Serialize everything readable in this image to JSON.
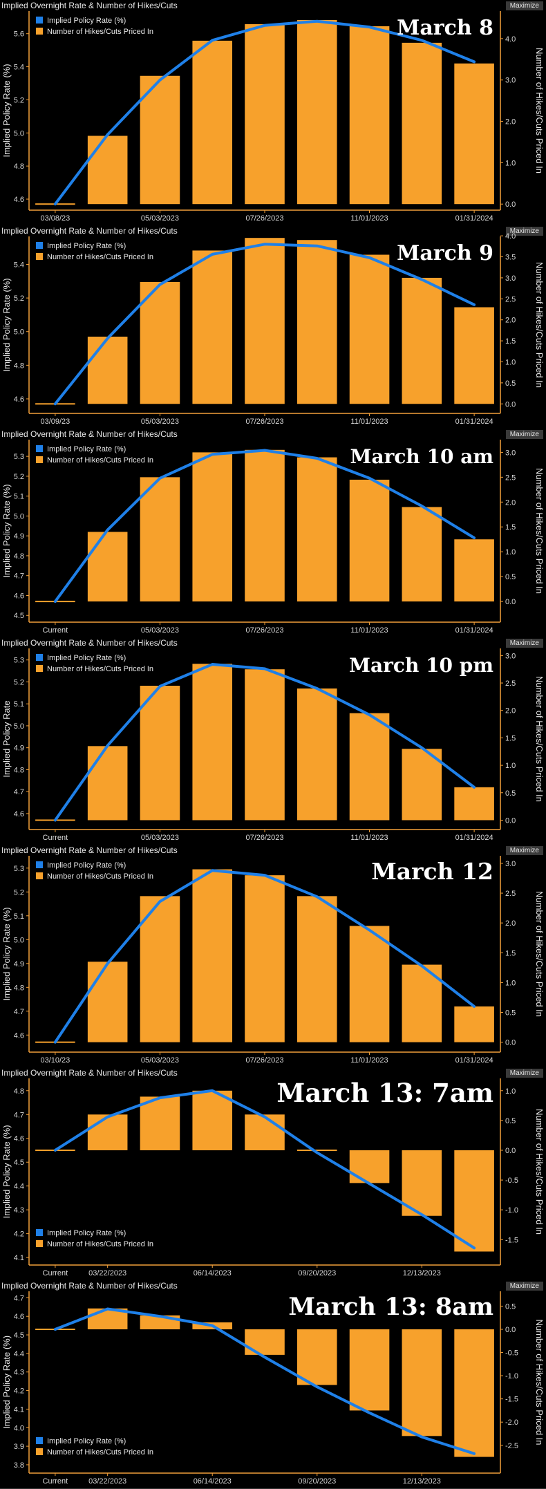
{
  "colors": {
    "bar": "#f7a12c",
    "line": "#1f80e8",
    "axis": "#f2a03a",
    "text": "#e6e6e6",
    "background": "#000000"
  },
  "chart_data": [
    {
      "type": "bar",
      "panel_title": "Implied Overnight Rate & Number of Hikes/Cuts",
      "button": "Maximize",
      "annotation": "March 8",
      "ylabel": "Implied Policy Rate (%)",
      "y2label": "Number of Hikes/Cuts Priced In",
      "legend": [
        "Implied Policy Rate (%)",
        "Number of Hikes/Cuts Priced In"
      ],
      "legend_position": "top-left",
      "yticks": [
        4.6,
        4.8,
        5.0,
        5.2,
        5.4,
        5.6
      ],
      "ytick_labels": [
        "4.6",
        "4.8",
        "5.0",
        "5.2",
        "5.4",
        "5.6"
      ],
      "y2ticks": [
        0.0,
        1.0,
        2.0,
        3.0,
        4.0
      ],
      "y2tick_labels": [
        "0.0",
        "1.0",
        "2.0",
        "3.0",
        "4.0"
      ],
      "ylim": [
        4.55,
        5.72
      ],
      "xtick_labels": [
        "03/08/23",
        "05/03/2023",
        "07/26/2023",
        "11/01/2023",
        "01/31/2024"
      ],
      "xtick_index": [
        0,
        2,
        4,
        6,
        8
      ],
      "hikes": [
        0.0,
        1.65,
        3.1,
        3.95,
        4.35,
        4.45,
        4.3,
        3.9,
        3.4
      ],
      "rate": [
        4.57,
        4.99,
        5.32,
        5.56,
        5.65,
        5.675,
        5.64,
        5.56,
        5.43
      ]
    },
    {
      "type": "bar",
      "panel_title": "Implied Overnight Rate & Number of Hikes/Cuts",
      "button": "Maximize",
      "annotation": "March 9",
      "ylabel": "Implied Policy Rate (%)",
      "y2label": "Number of Hikes/Cuts Priced In",
      "legend": [
        "Implied Policy Rate (%)",
        "Number of Hikes/Cuts Priced In"
      ],
      "legend_position": "top-left",
      "yticks": [
        4.6,
        4.8,
        5.0,
        5.2,
        5.4
      ],
      "ytick_labels": [
        "4.6",
        "4.8",
        "5.0",
        "5.2",
        "5.4"
      ],
      "y2ticks": [
        0.0,
        0.5,
        1.0,
        1.5,
        2.0,
        2.5,
        3.0,
        3.5,
        4.0
      ],
      "y2tick_labels": [
        "0.0",
        "0.5",
        "1.0",
        "1.5",
        "2.0",
        "2.5",
        "3.0",
        "3.5",
        "4.0"
      ],
      "ylim": [
        4.53,
        5.55
      ],
      "xtick_labels": [
        "03/09/23",
        "05/03/2023",
        "07/26/2023",
        "11/01/2023",
        "01/31/2024"
      ],
      "xtick_index": [
        0,
        2,
        4,
        6,
        8
      ],
      "hikes": [
        0.0,
        1.6,
        2.9,
        3.65,
        3.95,
        3.9,
        3.55,
        3.0,
        2.3
      ],
      "rate": [
        4.57,
        4.96,
        5.28,
        5.46,
        5.52,
        5.51,
        5.44,
        5.31,
        5.16
      ]
    },
    {
      "type": "bar",
      "panel_title": "Implied Overnight Rate & Number of Hikes/Cuts",
      "button": "Maximize",
      "annotation": "March 10 am",
      "ylabel": "Implied Policy Rate (%)",
      "y2label": "Number of Hikes/Cuts Priced In",
      "legend": [
        "Implied Policy Rate (%)",
        "Number of Hikes/Cuts Priced In"
      ],
      "legend_position": "top-left",
      "yticks": [
        4.5,
        4.6,
        4.7,
        4.8,
        4.9,
        5.0,
        5.1,
        5.2,
        5.3
      ],
      "ytick_labels": [
        "4.5",
        "4.6",
        "4.7",
        "4.8",
        "4.9",
        "5.0",
        "5.1",
        "5.2",
        "5.3"
      ],
      "y2ticks": [
        0.0,
        0.5,
        1.0,
        1.5,
        2.0,
        2.5,
        3.0
      ],
      "y2tick_labels": [
        "0.0",
        "0.5",
        "1.0",
        "1.5",
        "2.0",
        "2.5",
        "3.0"
      ],
      "ylim": [
        4.48,
        5.37
      ],
      "xtick_labels": [
        "Current",
        "05/03/2023",
        "07/26/2023",
        "11/01/2023",
        "01/31/2024"
      ],
      "xtick_index": [
        0,
        2,
        4,
        6,
        8
      ],
      "hikes": [
        0.0,
        1.4,
        2.5,
        3.0,
        3.05,
        2.9,
        2.45,
        1.9,
        1.25
      ],
      "rate": [
        4.57,
        4.93,
        5.19,
        5.31,
        5.33,
        5.29,
        5.19,
        5.05,
        4.89
      ]
    },
    {
      "type": "bar",
      "panel_title": "Implied Overnight Rate & Number of Hikes/Cuts",
      "button": "Maximize",
      "annotation": "March 10 pm",
      "ylabel": "Implied Policy Rate",
      "y2label": "Number of Hikes/Cuts Priced In",
      "legend": [
        "Implied Policy Rate (%)",
        "Number of Hikes/Cuts Priced In"
      ],
      "legend_position": "top-left",
      "yticks": [
        4.6,
        4.7,
        4.8,
        4.9,
        5.0,
        5.1,
        5.2,
        5.3
      ],
      "ytick_labels": [
        "4.6",
        "4.7",
        "4.8",
        "4.9",
        "5.0",
        "5.1",
        "5.2",
        "5.3"
      ],
      "y2ticks": [
        0.0,
        0.5,
        1.0,
        1.5,
        2.0,
        2.5,
        3.0
      ],
      "y2tick_labels": [
        "0.0",
        "0.5",
        "1.0",
        "1.5",
        "2.0",
        "2.5",
        "3.0"
      ],
      "ylim": [
        4.54,
        5.34
      ],
      "xtick_labels": [
        "Current",
        "05/03/2023",
        "07/26/2023",
        "11/01/2023",
        "01/31/2024"
      ],
      "xtick_index": [
        0,
        2,
        4,
        6,
        8
      ],
      "hikes": [
        0.0,
        1.35,
        2.45,
        2.85,
        2.75,
        2.4,
        1.95,
        1.3,
        0.6
      ],
      "rate": [
        4.57,
        4.91,
        5.18,
        5.28,
        5.26,
        5.17,
        5.05,
        4.9,
        4.72
      ]
    },
    {
      "type": "bar",
      "panel_title": "Implied Overnight Rate & Number of Hikes/Cuts",
      "button": "Maximize",
      "annotation": "March 12",
      "ylabel": "Implied Policy Rate (%)",
      "y2label": "Number of Hikes/Cuts Priced In",
      "legend": [
        "Implied Policy Rate (%)",
        "Number of Hikes/Cuts Priced In"
      ],
      "legend_position": "top-left",
      "yticks": [
        4.6,
        4.7,
        4.8,
        4.9,
        5.0,
        5.1,
        5.2,
        5.3
      ],
      "ytick_labels": [
        "4.6",
        "4.7",
        "4.8",
        "4.9",
        "5.0",
        "5.1",
        "5.2",
        "5.3"
      ],
      "y2ticks": [
        0.0,
        0.5,
        1.0,
        1.5,
        2.0,
        2.5,
        3.0
      ],
      "y2tick_labels": [
        "0.0",
        "0.5",
        "1.0",
        "1.5",
        "2.0",
        "2.5",
        "3.0"
      ],
      "ylim": [
        4.54,
        5.34
      ],
      "xtick_labels": [
        "03/10/23",
        "05/03/2023",
        "07/26/2023",
        "11/01/2023",
        "01/31/2024"
      ],
      "xtick_index": [
        0,
        2,
        4,
        6,
        8
      ],
      "hikes": [
        0.0,
        1.35,
        2.45,
        2.9,
        2.8,
        2.45,
        1.95,
        1.3,
        0.6
      ],
      "rate": [
        4.57,
        4.9,
        5.16,
        5.29,
        5.27,
        5.18,
        5.04,
        4.89,
        4.72
      ]
    },
    {
      "type": "bar",
      "panel_title": "Implied Overnight Rate & Number of Hikes/Cuts",
      "button": "Maximize",
      "annotation": "March 13: 7am",
      "ylabel": "Implied Policy Rate (%)",
      "y2label": "Number of Hikes/Cuts Priced In",
      "legend": [
        "Implied Policy Rate (%)",
        "Number of Hikes/Cuts Priced In"
      ],
      "legend_position": "bottom-left",
      "yticks": [
        4.1,
        4.2,
        4.3,
        4.4,
        4.5,
        4.6,
        4.7,
        4.8
      ],
      "ytick_labels": [
        "4.1",
        "4.2",
        "4.3",
        "4.4",
        "4.5",
        "4.6",
        "4.7",
        "4.8"
      ],
      "y2ticks": [
        -1.5,
        -1.0,
        -0.5,
        0.0,
        0.5,
        1.0
      ],
      "y2tick_labels": [
        "-1.5",
        "-1.0",
        "-0.5",
        "0.0",
        "0.5",
        "1.0"
      ],
      "ylim": [
        4.08,
        4.84
      ],
      "xtick_labels": [
        "Current",
        "03/22/2023",
        "06/14/2023",
        "09/20/2023",
        "12/13/2023"
      ],
      "xtick_index": [
        0,
        1,
        3,
        5,
        7
      ],
      "hikes": [
        0.0,
        0.6,
        0.9,
        1.0,
        0.6,
        0.0,
        -0.55,
        -1.1,
        -1.7
      ],
      "rate": [
        4.55,
        4.69,
        4.77,
        4.8,
        4.69,
        4.54,
        4.41,
        4.28,
        4.14
      ]
    },
    {
      "type": "bar",
      "panel_title": "Implied Overnight Rate & Number of Hikes/Cuts",
      "button": "Maximize",
      "annotation": "March 13: 8am",
      "ylabel": "Implied Policy Rate (%)",
      "y2label": "Number of Hikes/Cuts Priced In",
      "legend": [
        "Implied Policy Rate (%)",
        "Number of Hikes/Cuts Priced In"
      ],
      "legend_position": "bottom-left",
      "yticks": [
        3.8,
        3.9,
        4.0,
        4.1,
        4.2,
        4.3,
        4.4,
        4.5,
        4.6,
        4.7
      ],
      "ytick_labels": [
        "3.8",
        "3.9",
        "4.0",
        "4.1",
        "4.2",
        "4.3",
        "4.4",
        "4.5",
        "4.6",
        "4.7"
      ],
      "y2ticks": [
        -2.5,
        -2.0,
        -1.5,
        -1.0,
        -0.5,
        0.0,
        0.5
      ],
      "y2tick_labels": [
        "-2.5",
        "-2.0",
        "-1.5",
        "-1.0",
        "-0.5",
        "0.0",
        "0.5"
      ],
      "ylim": [
        3.77,
        4.72
      ],
      "xtick_labels": [
        "Current",
        "03/22/2023",
        "06/14/2023",
        "09/20/2023",
        "12/13/2023"
      ],
      "xtick_index": [
        0,
        1,
        3,
        5,
        7
      ],
      "hikes": [
        0.0,
        0.45,
        0.3,
        0.15,
        -0.55,
        -1.2,
        -1.75,
        -2.3,
        -2.75
      ],
      "rate": [
        4.53,
        4.64,
        4.6,
        4.55,
        4.38,
        4.22,
        4.08,
        3.95,
        3.86
      ]
    }
  ]
}
